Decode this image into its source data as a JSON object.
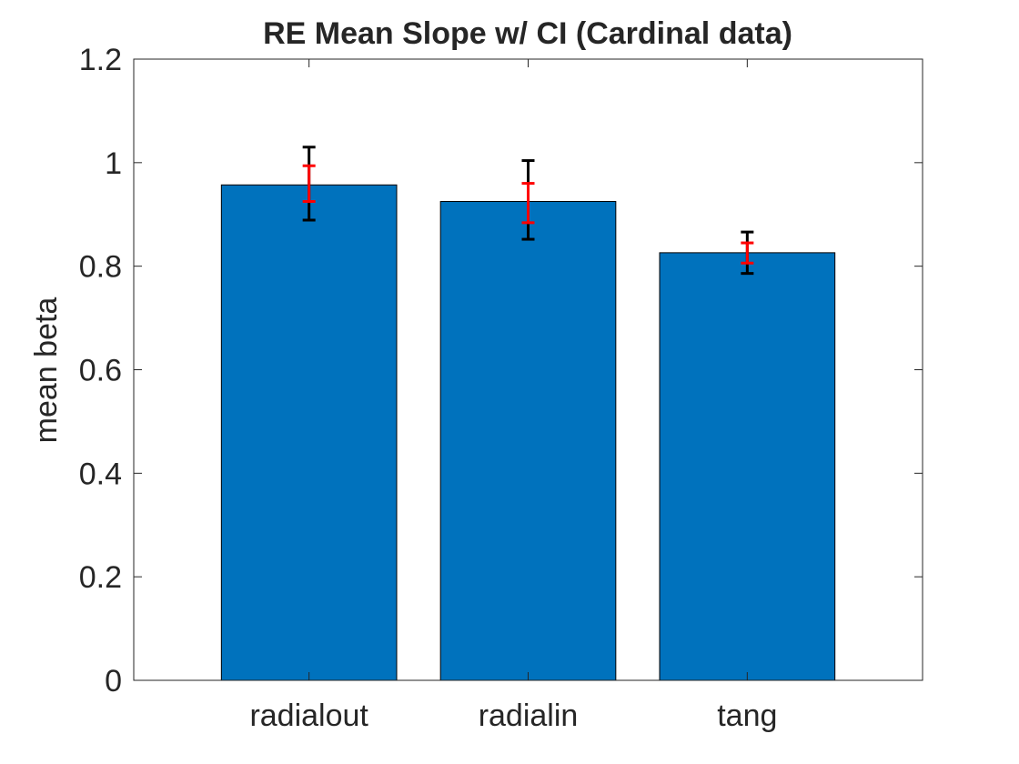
{
  "chart_data": {
    "type": "bar",
    "title": "RE Mean Slope w/ CI (Cardinal data)",
    "xlabel": "",
    "ylabel": "mean beta",
    "categories": [
      "radialout",
      "radialin",
      "tang"
    ],
    "values": [
      0.957,
      0.925,
      0.826
    ],
    "outer_ci": [
      {
        "lower": 0.889,
        "upper": 1.03
      },
      {
        "lower": 0.852,
        "upper": 1.004
      },
      {
        "lower": 0.786,
        "upper": 0.866
      }
    ],
    "inner_ci": [
      {
        "lower": 0.925,
        "upper": 0.994
      },
      {
        "lower": 0.884,
        "upper": 0.96
      },
      {
        "lower": 0.806,
        "upper": 0.845
      }
    ],
    "ylim": [
      0,
      1.2
    ],
    "xlim": [
      0.2,
      3.8
    ],
    "yticks": [
      0,
      0.2,
      0.4,
      0.6,
      0.8,
      1,
      1.2
    ],
    "ytick_labels": [
      "0",
      "0.2",
      "0.4",
      "0.6",
      "0.8",
      "1",
      "1.2"
    ],
    "grid": false,
    "colors": {
      "bar": "#0072BD",
      "bar_edge": "#000000",
      "outer_ci": "#000000",
      "inner_ci": "#FF0000",
      "axis": "#262626"
    }
  }
}
